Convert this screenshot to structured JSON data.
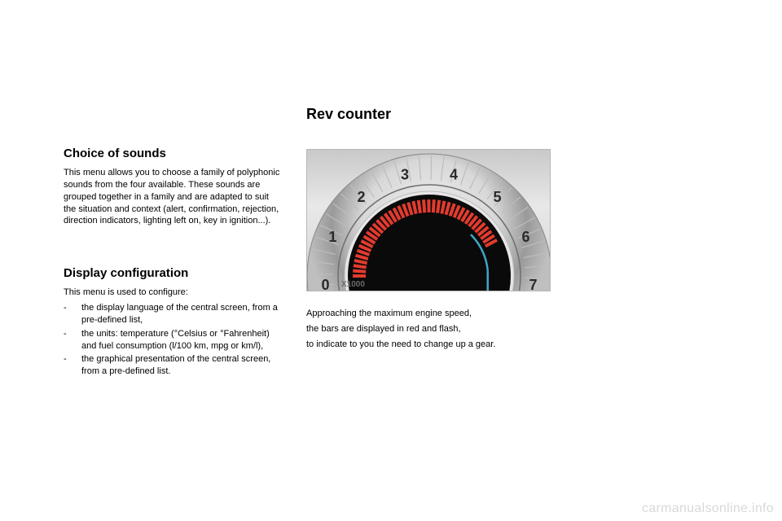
{
  "page": {
    "main_title": "Rev counter",
    "left": {
      "section1": {
        "title": "Choice of sounds",
        "body": "This menu allows you to choose a family of polyphonic sounds from the four available. These sounds are grouped together in a family and are adapted to suit the situation and context (alert, confirmation, rejection, direction indicators, lighting left on, key in ignition...)."
      },
      "section2": {
        "title": "Display configuration",
        "intro": "This menu is used to configure:",
        "items": [
          "the display language of the central screen, from a pre-defined list,",
          "the units: temperature (°Celsius or °Fahrenheit) and fuel consumption (l/100 km, mpg or km/l),",
          "the graphical presentation of the central screen, from a pre-defined list."
        ]
      }
    },
    "right": {
      "caption_line1": "Approaching the maximum engine speed,",
      "caption_line2": "the bars are displayed in red and flash,",
      "caption_line3": "to indicate to you the need to change up a gear."
    },
    "gauge": {
      "labels": [
        "0",
        "1",
        "2",
        "3",
        "4",
        "5",
        "6",
        "7"
      ],
      "unit_label": "X1000",
      "colors": {
        "dial_face": "#0a0a0a",
        "bezel_light": "#f2f2f2",
        "bezel_shadow": "#9a9a9a",
        "number_color": "#2a2a2a",
        "red_bar": "#e23b2e",
        "cyan_line": "#3fa7c4",
        "unit_text": "#6a6a6a"
      },
      "red_arc": {
        "start_deg": 180,
        "end_deg": 28
      },
      "cyan_arc": {
        "start_deg": 45,
        "end_deg": 5
      },
      "num_bars": 40
    },
    "watermark": "carmanualsonline.info"
  }
}
